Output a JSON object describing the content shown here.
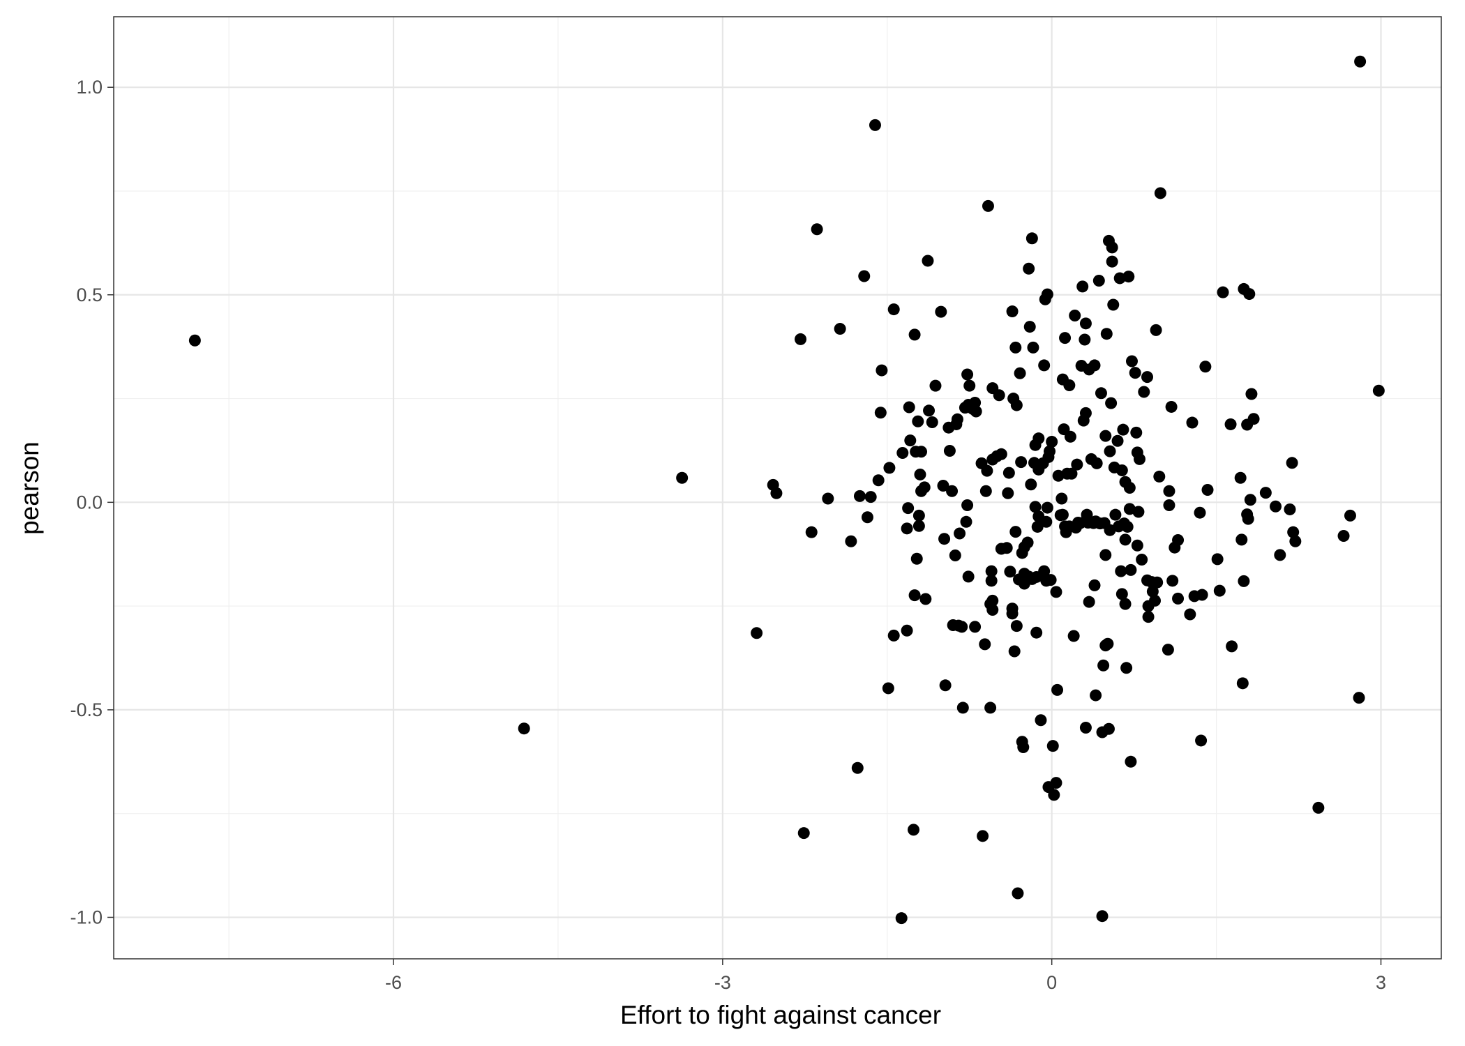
{
  "chart_data": {
    "type": "scatter",
    "title": "",
    "xlabel": "Effort to fight against cancer",
    "ylabel": "pearson",
    "xlim": [
      -8.55,
      3.55
    ],
    "ylim": [
      -1.1,
      1.17
    ],
    "x_ticks": [
      -6,
      -3,
      0,
      3
    ],
    "x_tick_labels": [
      "-6",
      "-3",
      "0",
      "3"
    ],
    "y_ticks": [
      -1.0,
      -0.5,
      0.0,
      0.5,
      1.0
    ],
    "y_tick_labels": [
      "-1.0",
      "-0.5",
      "0.0",
      "0.5",
      "1.0"
    ],
    "grid": true,
    "legend": "none",
    "point_color": "#000000",
    "series": [
      {
        "points": [
          [
            -7.81,
            0.39
          ],
          [
            -4.81,
            -0.545
          ],
          [
            -3.37,
            0.059
          ],
          [
            -2.69,
            -0.315
          ],
          [
            -2.54,
            0.042
          ],
          [
            -2.51,
            0.022
          ],
          [
            -2.29,
            0.393
          ],
          [
            -2.26,
            -0.797
          ],
          [
            -2.19,
            -0.072
          ],
          [
            -2.14,
            0.658
          ],
          [
            -2.04,
            0.009
          ],
          [
            -1.93,
            0.418
          ],
          [
            -1.83,
            -0.094
          ],
          [
            -1.77,
            -0.64
          ],
          [
            -1.75,
            0.015
          ],
          [
            -1.71,
            0.545
          ],
          [
            -1.68,
            -0.036
          ],
          [
            -1.65,
            0.013
          ],
          [
            -1.61,
            0.909
          ],
          [
            -1.58,
            0.053
          ],
          [
            -1.56,
            0.216
          ],
          [
            -1.55,
            0.318
          ],
          [
            -1.48,
            0.083
          ],
          [
            -1.49,
            -0.448
          ],
          [
            -1.44,
            0.465
          ],
          [
            -1.44,
            -0.321
          ],
          [
            -1.37,
            -1.002
          ],
          [
            -1.36,
            0.119
          ],
          [
            -1.32,
            -0.309
          ],
          [
            -1.32,
            -0.063
          ],
          [
            -1.31,
            -0.014
          ],
          [
            -1.3,
            0.229
          ],
          [
            -1.29,
            0.149
          ],
          [
            -1.26,
            -0.789
          ],
          [
            -1.25,
            0.404
          ],
          [
            -1.25,
            -0.224
          ],
          [
            -1.24,
            0.122
          ],
          [
            -1.23,
            -0.136
          ],
          [
            -1.22,
            0.195
          ],
          [
            -1.21,
            -0.057
          ],
          [
            -1.21,
            -0.032
          ],
          [
            -1.2,
            0.067
          ],
          [
            -1.19,
            0.122
          ],
          [
            -1.19,
            0.027
          ],
          [
            -1.16,
            0.036
          ],
          [
            -1.15,
            -0.233
          ],
          [
            -1.13,
            0.582
          ],
          [
            -1.12,
            0.221
          ],
          [
            -1.09,
            0.193
          ],
          [
            -1.06,
            0.281
          ],
          [
            -1.01,
            0.459
          ],
          [
            -0.99,
            0.04
          ],
          [
            -0.98,
            -0.088
          ],
          [
            -0.97,
            -0.441
          ],
          [
            -0.94,
            0.18
          ],
          [
            -0.93,
            0.124
          ],
          [
            -0.91,
            0.027
          ],
          [
            -0.9,
            -0.296
          ],
          [
            -0.88,
            -0.128
          ],
          [
            -0.87,
            0.188
          ],
          [
            -0.86,
            0.2
          ],
          [
            -0.85,
            -0.297
          ],
          [
            -0.84,
            -0.075
          ],
          [
            -0.82,
            -0.3
          ],
          [
            -0.81,
            -0.495
          ],
          [
            -0.79,
            0.228
          ],
          [
            -0.78,
            -0.047
          ],
          [
            -0.77,
            0.308
          ],
          [
            -0.77,
            -0.007
          ],
          [
            -0.76,
            0.235
          ],
          [
            -0.76,
            -0.179
          ],
          [
            -0.75,
            0.281
          ],
          [
            -0.72,
            0.225
          ],
          [
            -0.7,
            0.24
          ],
          [
            -0.7,
            -0.3
          ],
          [
            -0.69,
            0.219
          ],
          [
            -0.64,
            0.094
          ],
          [
            -0.63,
            -0.804
          ],
          [
            -0.61,
            -0.342
          ],
          [
            -0.6,
            0.027
          ],
          [
            -0.59,
            0.076
          ],
          [
            -0.58,
            0.714
          ],
          [
            -0.56,
            -0.495
          ],
          [
            -0.56,
            -0.245
          ],
          [
            -0.55,
            -0.166
          ],
          [
            -0.55,
            -0.189
          ],
          [
            -0.54,
            0.275
          ],
          [
            -0.54,
            0.103
          ],
          [
            -0.54,
            -0.237
          ],
          [
            -0.54,
            -0.259
          ],
          [
            -0.5,
            0.111
          ],
          [
            -0.48,
            0.258
          ],
          [
            -0.46,
            0.116
          ],
          [
            -0.46,
            -0.112
          ],
          [
            -0.41,
            -0.11
          ],
          [
            -0.4,
            0.022
          ],
          [
            -0.39,
            0.071
          ],
          [
            -0.38,
            -0.167
          ],
          [
            -0.36,
            0.46
          ],
          [
            -0.36,
            -0.256
          ],
          [
            -0.36,
            -0.268
          ],
          [
            -0.35,
            0.25
          ],
          [
            -0.34,
            -0.359
          ],
          [
            -0.33,
            -0.071
          ],
          [
            -0.33,
            0.373
          ],
          [
            -0.32,
            0.234
          ],
          [
            -0.32,
            -0.298
          ],
          [
            -0.31,
            -0.942
          ],
          [
            -0.3,
            -0.186
          ],
          [
            -0.29,
            0.311
          ],
          [
            -0.28,
            0.097
          ],
          [
            -0.27,
            -0.122
          ],
          [
            -0.27,
            -0.577
          ],
          [
            -0.26,
            -0.59
          ],
          [
            -0.25,
            -0.172
          ],
          [
            -0.25,
            -0.108
          ],
          [
            -0.25,
            -0.196
          ],
          [
            -0.22,
            -0.097
          ],
          [
            -0.21,
            0.563
          ],
          [
            -0.21,
            -0.179
          ],
          [
            -0.2,
            -0.183
          ],
          [
            -0.2,
            0.423
          ],
          [
            -0.19,
            0.043
          ],
          [
            -0.18,
            -0.185
          ],
          [
            -0.18,
            0.636
          ],
          [
            -0.17,
            0.373
          ],
          [
            -0.16,
            0.095
          ],
          [
            -0.15,
            0.138
          ],
          [
            -0.15,
            -0.011
          ],
          [
            -0.14,
            -0.18
          ],
          [
            -0.14,
            -0.314
          ],
          [
            -0.13,
            -0.059
          ],
          [
            -0.12,
            0.154
          ],
          [
            -0.12,
            0.083
          ],
          [
            -0.12,
            0.079
          ],
          [
            -0.12,
            -0.034
          ],
          [
            -0.1,
            -0.525
          ],
          [
            -0.08,
            0.094
          ],
          [
            -0.07,
            -0.166
          ],
          [
            -0.07,
            0.33
          ],
          [
            -0.06,
            0.489
          ],
          [
            -0.05,
            -0.047
          ],
          [
            -0.05,
            -0.189
          ],
          [
            -0.04,
            -0.013
          ],
          [
            -0.04,
            0.501
          ],
          [
            -0.03,
            0.109
          ],
          [
            -0.03,
            -0.686
          ],
          [
            -0.02,
            0.123
          ],
          [
            -0.01,
            -0.187
          ],
          [
            0.0,
            0.146
          ],
          [
            0.01,
            -0.587
          ],
          [
            0.02,
            -0.705
          ],
          [
            0.04,
            -0.216
          ],
          [
            0.04,
            -0.676
          ],
          [
            0.05,
            -0.452
          ],
          [
            0.06,
            0.064
          ],
          [
            0.08,
            -0.031
          ],
          [
            0.09,
            0.009
          ],
          [
            0.1,
            0.296
          ],
          [
            0.1,
            -0.03
          ],
          [
            0.11,
            0.176
          ],
          [
            0.12,
            0.396
          ],
          [
            0.12,
            -0.058
          ],
          [
            0.13,
            -0.072
          ],
          [
            0.14,
            0.069
          ],
          [
            0.16,
            0.282
          ],
          [
            0.16,
            -0.058
          ],
          [
            0.17,
            0.158
          ],
          [
            0.18,
            0.069
          ],
          [
            0.2,
            -0.322
          ],
          [
            0.21,
            0.45
          ],
          [
            0.22,
            -0.061
          ],
          [
            0.23,
            0.091
          ],
          [
            0.24,
            -0.049
          ],
          [
            0.26,
            -0.05
          ],
          [
            0.27,
            0.329
          ],
          [
            0.28,
            0.52
          ],
          [
            0.29,
            0.197
          ],
          [
            0.3,
            0.392
          ],
          [
            0.31,
            0.215
          ],
          [
            0.31,
            0.431
          ],
          [
            0.31,
            -0.543
          ],
          [
            0.32,
            -0.03
          ],
          [
            0.33,
            -0.049
          ],
          [
            0.34,
            0.32
          ],
          [
            0.34,
            -0.24
          ],
          [
            0.36,
            0.104
          ],
          [
            0.38,
            -0.05
          ],
          [
            0.39,
            0.33
          ],
          [
            0.39,
            -0.2
          ],
          [
            0.4,
            -0.046
          ],
          [
            0.4,
            -0.465
          ],
          [
            0.41,
            0.094
          ],
          [
            0.43,
            0.534
          ],
          [
            0.44,
            -0.051
          ],
          [
            0.45,
            0.263
          ],
          [
            0.46,
            -0.997
          ],
          [
            0.46,
            -0.554
          ],
          [
            0.47,
            -0.393
          ],
          [
            0.48,
            -0.05
          ],
          [
            0.49,
            -0.127
          ],
          [
            0.49,
            -0.345
          ],
          [
            0.49,
            0.16
          ],
          [
            0.5,
            0.406
          ],
          [
            0.51,
            -0.341
          ],
          [
            0.52,
            0.63
          ],
          [
            0.52,
            -0.546
          ],
          [
            0.53,
            -0.067
          ],
          [
            0.53,
            0.123
          ],
          [
            0.54,
            0.239
          ],
          [
            0.55,
            0.614
          ],
          [
            0.55,
            0.58
          ],
          [
            0.56,
            0.476
          ],
          [
            0.57,
            0.084
          ],
          [
            0.58,
            -0.03
          ],
          [
            0.6,
            0.148
          ],
          [
            0.61,
            -0.058
          ],
          [
            0.62,
            0.54
          ],
          [
            0.63,
            -0.166
          ],
          [
            0.64,
            0.077
          ],
          [
            0.64,
            -0.221
          ],
          [
            0.65,
            0.175
          ],
          [
            0.66,
            -0.051
          ],
          [
            0.67,
            0.049
          ],
          [
            0.67,
            -0.09
          ],
          [
            0.67,
            -0.245
          ],
          [
            0.68,
            -0.399
          ],
          [
            0.69,
            -0.059
          ],
          [
            0.7,
            0.544
          ],
          [
            0.71,
            0.035
          ],
          [
            0.71,
            -0.016
          ],
          [
            0.72,
            -0.163
          ],
          [
            0.72,
            -0.625
          ],
          [
            0.73,
            0.34
          ],
          [
            0.76,
            0.312
          ],
          [
            0.77,
            0.168
          ],
          [
            0.78,
            0.12
          ],
          [
            0.78,
            -0.104
          ],
          [
            0.79,
            -0.023
          ],
          [
            0.8,
            0.104
          ],
          [
            0.82,
            -0.138
          ],
          [
            0.84,
            0.266
          ],
          [
            0.87,
            0.302
          ],
          [
            0.87,
            -0.188
          ],
          [
            0.88,
            -0.25
          ],
          [
            0.88,
            -0.276
          ],
          [
            0.91,
            -0.192
          ],
          [
            0.92,
            -0.215
          ],
          [
            0.94,
            -0.237
          ],
          [
            0.95,
            0.415
          ],
          [
            0.96,
            -0.193
          ],
          [
            0.98,
            0.062
          ],
          [
            0.99,
            0.745
          ],
          [
            1.06,
            -0.355
          ],
          [
            1.07,
            0.027
          ],
          [
            1.07,
            -0.007
          ],
          [
            1.09,
            0.23
          ],
          [
            1.1,
            -0.189
          ],
          [
            1.12,
            -0.109
          ],
          [
            1.15,
            -0.232
          ],
          [
            1.15,
            -0.091
          ],
          [
            1.26,
            -0.27
          ],
          [
            1.28,
            0.192
          ],
          [
            1.3,
            -0.226
          ],
          [
            1.35,
            -0.025
          ],
          [
            1.36,
            -0.574
          ],
          [
            1.37,
            -0.223
          ],
          [
            1.4,
            0.327
          ],
          [
            1.42,
            0.03
          ],
          [
            1.51,
            -0.137
          ],
          [
            1.53,
            -0.213
          ],
          [
            1.56,
            0.506
          ],
          [
            1.63,
            0.188
          ],
          [
            1.64,
            -0.347
          ],
          [
            1.72,
            0.059
          ],
          [
            1.73,
            -0.09
          ],
          [
            1.74,
            -0.436
          ],
          [
            1.75,
            -0.19
          ],
          [
            1.75,
            0.514
          ],
          [
            1.78,
            -0.029
          ],
          [
            1.78,
            0.187
          ],
          [
            1.79,
            -0.04
          ],
          [
            1.8,
            0.502
          ],
          [
            1.81,
            0.006
          ],
          [
            1.82,
            0.261
          ],
          [
            1.84,
            0.201
          ],
          [
            1.95,
            0.023
          ],
          [
            2.04,
            -0.01
          ],
          [
            2.08,
            -0.127
          ],
          [
            2.17,
            -0.017
          ],
          [
            2.19,
            0.095
          ],
          [
            2.2,
            -0.072
          ],
          [
            2.22,
            -0.094
          ],
          [
            2.43,
            -0.736
          ],
          [
            2.66,
            -0.081
          ],
          [
            2.72,
            -0.032
          ],
          [
            2.8,
            -0.471
          ],
          [
            2.81,
            1.062
          ],
          [
            2.98,
            0.269
          ]
        ]
      }
    ]
  }
}
